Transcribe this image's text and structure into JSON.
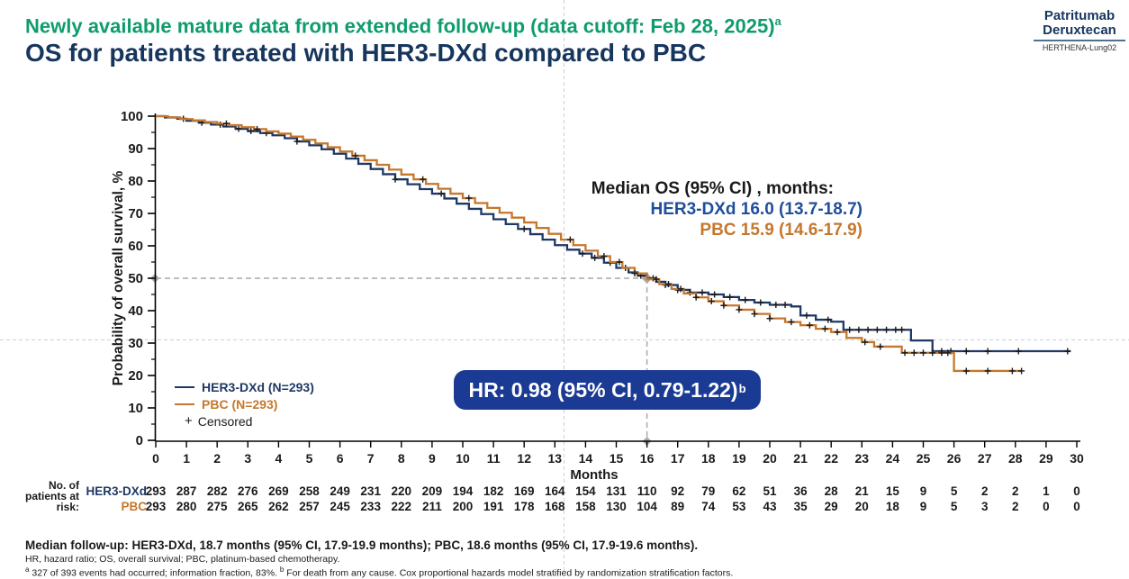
{
  "header": {
    "title_line1": "Newly available mature data from extended follow-up (data cutoff: Feb 28, 2025)",
    "title_line1_sup": "a",
    "title_line2": "OS for patients treated with HER3-DXd compared to PBC",
    "logo": {
      "line1": "Patritumab",
      "line2": "Deruxtecan",
      "trial": "HERTHENA-Lung02"
    }
  },
  "annotations": {
    "median_title": "Median OS (95% CI) , months:",
    "median_her3": "HER3-DXd 16.0 (13.7-18.7)",
    "median_pbc": "PBC 15.9 (14.6-17.9)"
  },
  "hr_box": {
    "label": "HR: 0.98 (95% CI, 0.79-1.22)",
    "sup": "b"
  },
  "legend": {
    "items": [
      {
        "label": "HER3-DXd (N=293)",
        "swatch": "line",
        "color": "#1F3864"
      },
      {
        "label": "PBC (N=293)",
        "swatch": "line",
        "color": "#C5772D"
      },
      {
        "label": "Censored",
        "swatch": "plus",
        "symbol": "+",
        "color": "#1A1A1A"
      }
    ]
  },
  "footnotes": {
    "line1": "Median follow-up: HER3-DXd, 18.7 months (95% CI, 17.9-19.9 months); PBC, 18.6 months (95% CI, 17.9-19.6 months).",
    "line2": "HR, hazard ratio; OS, overall survival; PBC, platinum-based chemotherapy.",
    "line3_sup_a": "a",
    "line3_text_a": " 327 of 393 events had occurred; information fraction, 83%. ",
    "line3_sup_b": "b",
    "line3_text_b": " For death from any cause. Cox proportional hazards model stratified by randomization stratification factors."
  },
  "theme": {
    "green": "#0F9C6D",
    "navy": "#17365D",
    "blue": "#1F3864",
    "orange": "#C5772D",
    "hr_box_bg": "#1B3A94",
    "guide_gray": "#A9A9A9",
    "crosshair_gray": "#CDCDCD",
    "text_black": "#1A1A1A"
  },
  "chart_data": {
    "type": "line",
    "subtype": "kaplan-meier-step",
    "xlabel": "Months",
    "ylabel": "Probability of overall survival, %",
    "xlim": [
      0,
      30
    ],
    "ylim": [
      0,
      100
    ],
    "x_tick_step": 1,
    "y_tick_step": 10,
    "y_minor_tick_step": 5,
    "grid": false,
    "legend_position": "inside-lower-left",
    "series": [
      {
        "name": "HER3-DXd (N=293)",
        "color": "#1F3864",
        "points": [
          [
            0,
            100
          ],
          [
            0.3,
            99.6
          ],
          [
            0.7,
            99.2
          ],
          [
            1,
            98.6
          ],
          [
            1.4,
            98.0
          ],
          [
            1.8,
            97.4
          ],
          [
            2.2,
            96.8
          ],
          [
            2.6,
            96.1
          ],
          [
            3,
            95.4
          ],
          [
            3.4,
            94.8
          ],
          [
            3.8,
            94.1
          ],
          [
            4.2,
            93.2
          ],
          [
            4.6,
            92.2
          ],
          [
            5,
            91.0
          ],
          [
            5.4,
            89.8
          ],
          [
            5.8,
            88.4
          ],
          [
            6.2,
            86.9
          ],
          [
            6.6,
            85.3
          ],
          [
            7,
            83.7
          ],
          [
            7.4,
            82.1
          ],
          [
            7.8,
            80.5
          ],
          [
            8.2,
            79.0
          ],
          [
            8.6,
            77.5
          ],
          [
            9,
            76.1
          ],
          [
            9.4,
            74.6
          ],
          [
            9.8,
            73.0
          ],
          [
            10.2,
            71.4
          ],
          [
            10.6,
            69.8
          ],
          [
            11,
            68.2
          ],
          [
            11.4,
            66.7
          ],
          [
            11.8,
            65.2
          ],
          [
            12.2,
            63.6
          ],
          [
            12.6,
            61.9
          ],
          [
            13,
            60.2
          ],
          [
            13.4,
            58.8
          ],
          [
            13.8,
            57.6
          ],
          [
            14.2,
            56.3
          ],
          [
            14.6,
            54.8
          ],
          [
            15,
            53.2
          ],
          [
            15.4,
            51.8
          ],
          [
            15.7,
            50.8
          ],
          [
            16,
            50.0
          ],
          [
            16.3,
            48.9
          ],
          [
            16.6,
            47.9
          ],
          [
            17,
            46.4
          ],
          [
            17.4,
            45.6
          ],
          [
            18,
            45.0
          ],
          [
            18.5,
            44.2
          ],
          [
            19,
            43.3
          ],
          [
            19.5,
            42.5
          ],
          [
            20,
            41.8
          ],
          [
            20.7,
            41.3
          ],
          [
            21,
            38.5
          ],
          [
            21.5,
            37.2
          ],
          [
            22,
            36.6
          ],
          [
            22.4,
            34.1
          ],
          [
            24.5,
            34.1
          ],
          [
            24.6,
            30.8
          ],
          [
            25.2,
            30.8
          ],
          [
            25.3,
            27.5
          ],
          [
            29.8,
            27.5
          ]
        ],
        "censor_months": [
          0.9,
          1.5,
          2.1,
          2.7,
          3.1,
          3.6,
          4.6,
          7.8,
          9.3,
          12.0,
          13.9,
          14.3,
          14.8,
          15.3,
          15.8,
          16.2,
          16.6,
          17.0,
          17.4,
          17.8,
          18.2,
          18.7,
          19.2,
          19.7,
          20.2,
          20.5,
          21.2,
          21.9,
          22.6,
          22.9,
          23.2,
          23.5,
          23.8,
          24.1,
          24.3,
          25.6,
          25.9,
          26.4,
          27.1,
          28.1,
          29.7
        ]
      },
      {
        "name": "PBC (N=293)",
        "color": "#C5772D",
        "points": [
          [
            0,
            100
          ],
          [
            0.4,
            99.6
          ],
          [
            0.8,
            99.1
          ],
          [
            1.2,
            98.7
          ],
          [
            1.6,
            98.2
          ],
          [
            2,
            97.7
          ],
          [
            2.4,
            97.2
          ],
          [
            2.8,
            96.6
          ],
          [
            3.2,
            96.0
          ],
          [
            3.6,
            95.3
          ],
          [
            4,
            94.6
          ],
          [
            4.4,
            93.7
          ],
          [
            4.8,
            92.7
          ],
          [
            5.2,
            91.6
          ],
          [
            5.6,
            90.4
          ],
          [
            6,
            89.1
          ],
          [
            6.4,
            87.8
          ],
          [
            6.8,
            86.4
          ],
          [
            7.2,
            85.0
          ],
          [
            7.6,
            83.5
          ],
          [
            8,
            82.0
          ],
          [
            8.4,
            80.5
          ],
          [
            8.8,
            79.1
          ],
          [
            9.2,
            77.6
          ],
          [
            9.6,
            76.1
          ],
          [
            10,
            74.7
          ],
          [
            10.4,
            73.2
          ],
          [
            10.8,
            71.7
          ],
          [
            11.2,
            70.2
          ],
          [
            11.6,
            68.7
          ],
          [
            12,
            67.2
          ],
          [
            12.4,
            65.5
          ],
          [
            12.8,
            63.7
          ],
          [
            13.2,
            61.9
          ],
          [
            13.6,
            60.2
          ],
          [
            14,
            58.5
          ],
          [
            14.4,
            56.8
          ],
          [
            14.8,
            55.0
          ],
          [
            15.2,
            53.2
          ],
          [
            15.6,
            51.5
          ],
          [
            16,
            49.7
          ],
          [
            16.4,
            48.2
          ],
          [
            16.8,
            46.7
          ],
          [
            17.2,
            45.3
          ],
          [
            17.6,
            44.1
          ],
          [
            18,
            42.9
          ],
          [
            18.5,
            41.6
          ],
          [
            19,
            40.3
          ],
          [
            19.5,
            39.0
          ],
          [
            20,
            37.6
          ],
          [
            20.5,
            36.5
          ],
          [
            21,
            35.5
          ],
          [
            21.5,
            34.4
          ],
          [
            22,
            33.4
          ],
          [
            22.5,
            31.6
          ],
          [
            23,
            30.3
          ],
          [
            23.4,
            28.9
          ],
          [
            24.3,
            27.0
          ],
          [
            25.9,
            27.0
          ],
          [
            26,
            21.4
          ],
          [
            28.2,
            21.4
          ]
        ],
        "censor_months": [
          2.3,
          3.3,
          6.5,
          8.7,
          10.2,
          13.5,
          14.6,
          15.1,
          15.6,
          16.3,
          16.7,
          17.1,
          17.6,
          18.1,
          18.5,
          19.0,
          19.5,
          20.0,
          20.7,
          21.3,
          21.8,
          22.2,
          23.1,
          23.6,
          24.4,
          24.7,
          25.0,
          25.3,
          25.6,
          25.8,
          26.4,
          27.1,
          27.9,
          28.2
        ]
      }
    ],
    "median_guide": {
      "percent": 50,
      "month": 16
    },
    "crosshair_overlay": {
      "x_month": 13.3,
      "y_percent": 31
    },
    "at_risk": {
      "header_lines": [
        "No. of",
        "patients at",
        "risk:"
      ],
      "months": [
        0,
        1,
        2,
        3,
        4,
        5,
        6,
        7,
        8,
        9,
        10,
        11,
        12,
        13,
        14,
        15,
        16,
        17,
        18,
        19,
        20,
        21,
        22,
        23,
        24,
        25,
        26,
        27,
        28,
        29,
        30
      ],
      "rows": [
        {
          "name": "HER3-DXd",
          "color": "#1F3864",
          "values": [
            293,
            287,
            282,
            276,
            269,
            258,
            249,
            231,
            220,
            209,
            194,
            182,
            169,
            164,
            154,
            131,
            110,
            92,
            79,
            62,
            51,
            36,
            28,
            21,
            15,
            9,
            5,
            2,
            2,
            1,
            0
          ]
        },
        {
          "name": "PBC",
          "color": "#C5772D",
          "values": [
            293,
            280,
            275,
            265,
            262,
            257,
            245,
            233,
            222,
            211,
            200,
            191,
            178,
            168,
            158,
            130,
            104,
            89,
            74,
            53,
            43,
            35,
            29,
            20,
            18,
            9,
            5,
            3,
            2,
            0,
            0
          ]
        }
      ]
    }
  }
}
